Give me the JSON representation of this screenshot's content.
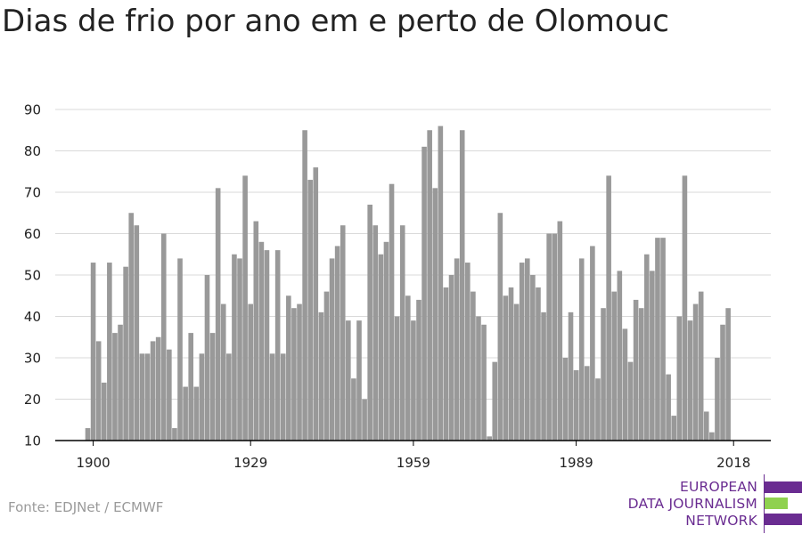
{
  "title": "Dias de frio por ano em e perto de Olomouc",
  "source": "Fonte: EDJNet / ECMWF",
  "logo": {
    "lines": [
      "EUROPEAN",
      "DATA JOURNALISM",
      "NETWORK"
    ],
    "colors": {
      "purple": "#6a2c91",
      "green": "#8fd14f"
    }
  },
  "colors": {
    "bar": "#999999",
    "grid": "#d9d9d9",
    "axis": "#000000",
    "tick_text": "#222222"
  },
  "chart_data": {
    "type": "bar",
    "title": "Dias de frio por ano em e perto de Olomouc",
    "xlabel": "",
    "ylabel": "",
    "ylim": [
      10,
      90
    ],
    "yticks": [
      10,
      20,
      30,
      40,
      50,
      60,
      70,
      80,
      90
    ],
    "xticks": [
      1900,
      1929,
      1959,
      1989,
      2018
    ],
    "grid": true,
    "years": [
      1899,
      2018
    ],
    "values": [
      13,
      53,
      34,
      24,
      53,
      36,
      38,
      52,
      65,
      62,
      31,
      31,
      34,
      35,
      60,
      32,
      13,
      54,
      23,
      36,
      23,
      31,
      50,
      36,
      71,
      43,
      31,
      55,
      54,
      74,
      43,
      63,
      58,
      56,
      31,
      56,
      31,
      45,
      42,
      43,
      85,
      73,
      76,
      41,
      46,
      54,
      57,
      62,
      39,
      25,
      39,
      20,
      67,
      62,
      55,
      58,
      72,
      40,
      62,
      45,
      39,
      44,
      81,
      85,
      71,
      86,
      47,
      50,
      54,
      85,
      53,
      46,
      40,
      38,
      11,
      29,
      65,
      45,
      47,
      43,
      53,
      54,
      50,
      47,
      41,
      60,
      60,
      63,
      30,
      41,
      27,
      54,
      28,
      57,
      25,
      42,
      74,
      46,
      51,
      37,
      29,
      44,
      42,
      55,
      51,
      59,
      59,
      26,
      16,
      40,
      74,
      39,
      43,
      46,
      17,
      12,
      30,
      38,
      42,
      10
    ]
  }
}
